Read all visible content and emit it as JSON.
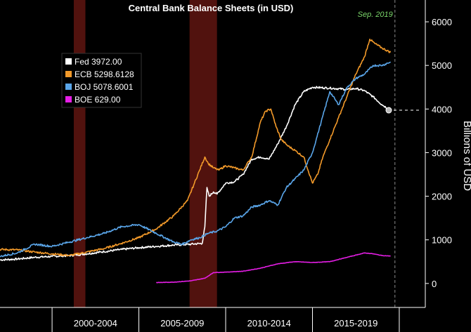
{
  "chart_data": {
    "type": "line",
    "title": "Central Bank Balance Sheets (in USD)",
    "ylabel": "Billions of USD",
    "xlabel": "",
    "ylim": [
      -550,
      6500
    ],
    "xlim": [
      1997.0,
      2021.5
    ],
    "yticks": [
      0,
      1000,
      2000,
      3000,
      4000,
      5000,
      6000
    ],
    "xticks": [
      {
        "label": "2000-2004",
        "at": 2002.5,
        "start": 2000
      },
      {
        "label": "2005-2009",
        "at": 2007.5,
        "start": 2005
      },
      {
        "label": "2010-2014",
        "at": 2012.5,
        "start": 2010
      },
      {
        "label": "2015-2019",
        "at": 2017.5,
        "start": 2015
      }
    ],
    "grid": false,
    "legend_position": "top-left",
    "annotation": {
      "label": "Sep. 2019",
      "x": 2019.75
    },
    "recessions": [
      [
        2001.25,
        2001.92
      ],
      [
        2007.92,
        2009.5
      ]
    ],
    "colors": {
      "background": "#000000",
      "recession": "#5a1410",
      "axis": "#ffffff"
    },
    "series": [
      {
        "name": "Fed",
        "last": "3972.00",
        "color": "#ffffff",
        "points": [
          [
            1997.0,
            540
          ],
          [
            1998.0,
            560
          ],
          [
            1999.0,
            600
          ],
          [
            2000.0,
            620
          ],
          [
            2001.0,
            640
          ],
          [
            2002.0,
            680
          ],
          [
            2003.0,
            730
          ],
          [
            2004.0,
            780
          ],
          [
            2005.0,
            820
          ],
          [
            2006.0,
            850
          ],
          [
            2007.0,
            880
          ],
          [
            2008.0,
            900
          ],
          [
            2008.65,
            920
          ],
          [
            2008.8,
            1300
          ],
          [
            2008.92,
            2200
          ],
          [
            2009.05,
            2000
          ],
          [
            2009.3,
            2100
          ],
          [
            2009.5,
            2050
          ],
          [
            2010.0,
            2300
          ],
          [
            2010.5,
            2330
          ],
          [
            2011.0,
            2500
          ],
          [
            2011.5,
            2850
          ],
          [
            2012.0,
            2900
          ],
          [
            2012.5,
            2850
          ],
          [
            2013.0,
            3200
          ],
          [
            2013.5,
            3600
          ],
          [
            2014.0,
            4100
          ],
          [
            2014.5,
            4400
          ],
          [
            2015.0,
            4500
          ],
          [
            2016.0,
            4480
          ],
          [
            2017.0,
            4450
          ],
          [
            2017.5,
            4470
          ],
          [
            2018.0,
            4420
          ],
          [
            2018.5,
            4280
          ],
          [
            2019.0,
            4100
          ],
          [
            2019.5,
            3972
          ]
        ]
      },
      {
        "name": "ECB",
        "last": "5298.6128",
        "color": "#f39a2a",
        "points": [
          [
            1997.0,
            780
          ],
          [
            1998.0,
            770
          ],
          [
            1999.0,
            720
          ],
          [
            2000.0,
            680
          ],
          [
            2001.0,
            640
          ],
          [
            2002.0,
            720
          ],
          [
            2003.0,
            800
          ],
          [
            2004.0,
            920
          ],
          [
            2005.0,
            1050
          ],
          [
            2006.0,
            1250
          ],
          [
            2007.0,
            1550
          ],
          [
            2007.8,
            1900
          ],
          [
            2008.2,
            2300
          ],
          [
            2008.5,
            2600
          ],
          [
            2008.8,
            2900
          ],
          [
            2009.0,
            2750
          ],
          [
            2009.3,
            2650
          ],
          [
            2009.6,
            2600
          ],
          [
            2010.0,
            2700
          ],
          [
            2010.5,
            2650
          ],
          [
            2011.0,
            2600
          ],
          [
            2011.5,
            2900
          ],
          [
            2012.0,
            3700
          ],
          [
            2012.3,
            3950
          ],
          [
            2012.6,
            4000
          ],
          [
            2012.9,
            3600
          ],
          [
            2013.2,
            3300
          ],
          [
            2013.6,
            3150
          ],
          [
            2014.0,
            3050
          ],
          [
            2014.5,
            2900
          ],
          [
            2015.0,
            2300
          ],
          [
            2015.3,
            2500
          ],
          [
            2015.6,
            2900
          ],
          [
            2016.0,
            3300
          ],
          [
            2016.5,
            3800
          ],
          [
            2017.0,
            4300
          ],
          [
            2017.5,
            4800
          ],
          [
            2018.0,
            5200
          ],
          [
            2018.3,
            5600
          ],
          [
            2018.6,
            5500
          ],
          [
            2019.0,
            5400
          ],
          [
            2019.5,
            5299
          ]
        ]
      },
      {
        "name": "BOJ",
        "last": "5078.6001",
        "color": "#5aa6ea",
        "points": [
          [
            1997.0,
            620
          ],
          [
            1998.0,
            700
          ],
          [
            1999.0,
            900
          ],
          [
            2000.0,
            850
          ],
          [
            2001.0,
            950
          ],
          [
            2002.0,
            1050
          ],
          [
            2003.0,
            1150
          ],
          [
            2004.0,
            1300
          ],
          [
            2005.0,
            1350
          ],
          [
            2006.0,
            1150
          ],
          [
            2007.0,
            950
          ],
          [
            2007.5,
            900
          ],
          [
            2008.0,
            1000
          ],
          [
            2008.5,
            1050
          ],
          [
            2009.0,
            1150
          ],
          [
            2009.5,
            1200
          ],
          [
            2010.0,
            1300
          ],
          [
            2010.5,
            1500
          ],
          [
            2011.0,
            1550
          ],
          [
            2011.5,
            1750
          ],
          [
            2012.0,
            1800
          ],
          [
            2012.5,
            1900
          ],
          [
            2013.0,
            1800
          ],
          [
            2013.5,
            2200
          ],
          [
            2014.0,
            2400
          ],
          [
            2014.5,
            2600
          ],
          [
            2015.0,
            3000
          ],
          [
            2015.5,
            3700
          ],
          [
            2016.0,
            4400
          ],
          [
            2016.5,
            4100
          ],
          [
            2017.0,
            4500
          ],
          [
            2017.5,
            4700
          ],
          [
            2018.0,
            4800
          ],
          [
            2018.5,
            5000
          ],
          [
            2019.0,
            5000
          ],
          [
            2019.5,
            5079
          ]
        ]
      },
      {
        "name": "BOE",
        "last": "629.00",
        "color": "#e61ee6",
        "points": [
          [
            2006.0,
            20
          ],
          [
            2007.0,
            30
          ],
          [
            2008.0,
            60
          ],
          [
            2008.8,
            120
          ],
          [
            2009.3,
            250
          ],
          [
            2010.0,
            260
          ],
          [
            2011.0,
            280
          ],
          [
            2012.0,
            350
          ],
          [
            2013.0,
            450
          ],
          [
            2014.0,
            500
          ],
          [
            2015.0,
            480
          ],
          [
            2016.0,
            500
          ],
          [
            2017.0,
            600
          ],
          [
            2018.0,
            700
          ],
          [
            2018.5,
            680
          ],
          [
            2019.0,
            640
          ],
          [
            2019.5,
            629
          ]
        ]
      }
    ]
  }
}
